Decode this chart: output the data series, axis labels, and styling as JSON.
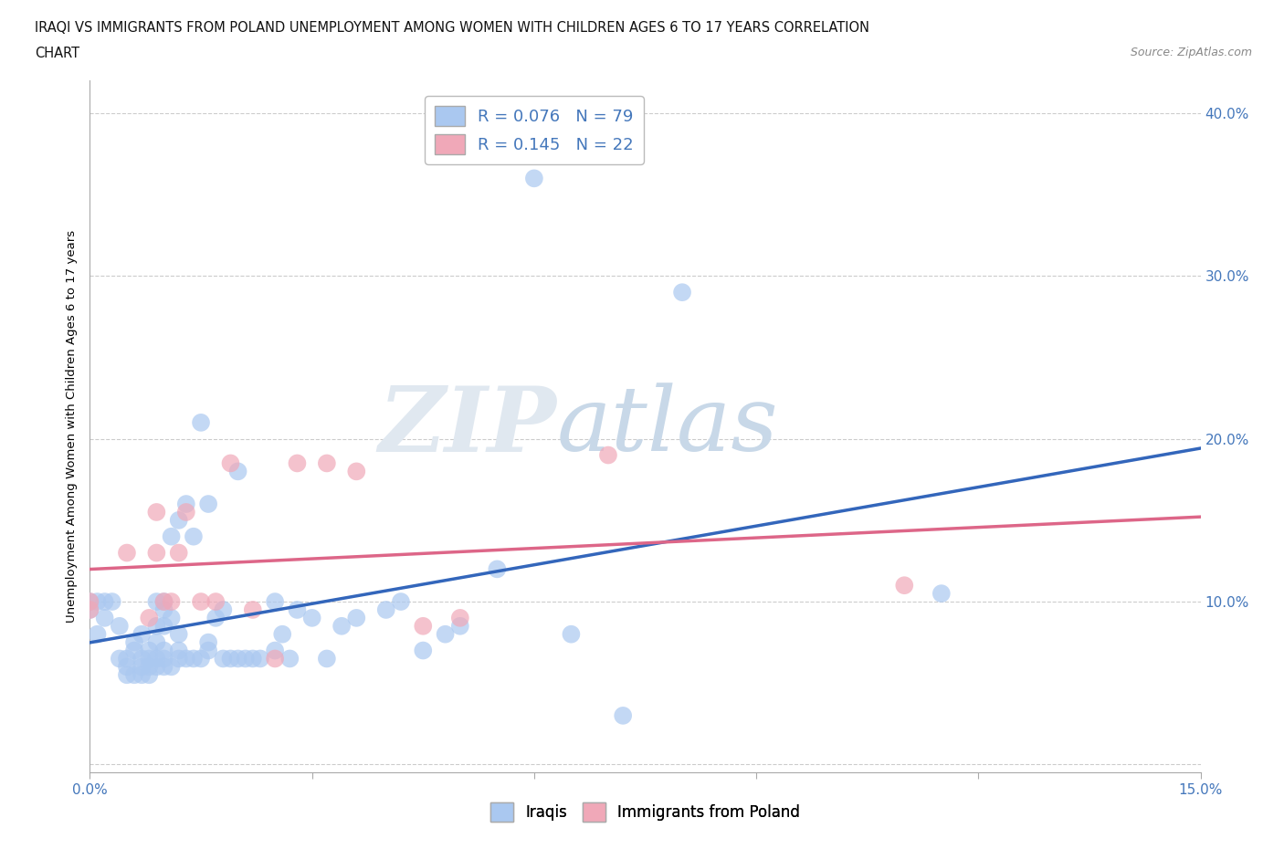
{
  "title_line1": "IRAQI VS IMMIGRANTS FROM POLAND UNEMPLOYMENT AMONG WOMEN WITH CHILDREN AGES 6 TO 17 YEARS CORRELATION",
  "title_line2": "CHART",
  "source": "Source: ZipAtlas.com",
  "ylabel": "Unemployment Among Women with Children Ages 6 to 17 years",
  "xlim": [
    0.0,
    0.15
  ],
  "ylim": [
    -0.005,
    0.42
  ],
  "xticks": [
    0.0,
    0.03,
    0.06,
    0.09,
    0.12,
    0.15
  ],
  "xticklabels": [
    "0.0%",
    "",
    "",
    "",
    "",
    "15.0%"
  ],
  "yticks": [
    0.0,
    0.1,
    0.2,
    0.3,
    0.4
  ],
  "yticklabels": [
    "",
    "10.0%",
    "20.0%",
    "30.0%",
    "40.0%"
  ],
  "iraqis_R": 0.076,
  "iraqis_N": 79,
  "poland_R": 0.145,
  "poland_N": 22,
  "iraqis_color": "#aac8f0",
  "poland_color": "#f0a8b8",
  "iraqis_line_color": "#3366bb",
  "poland_line_color": "#dd6688",
  "watermark_zip": "ZIP",
  "watermark_atlas": "atlas",
  "iraqis_x": [
    0.0,
    0.0,
    0.001,
    0.001,
    0.002,
    0.002,
    0.003,
    0.004,
    0.004,
    0.005,
    0.005,
    0.005,
    0.006,
    0.006,
    0.006,
    0.007,
    0.007,
    0.007,
    0.007,
    0.008,
    0.008,
    0.008,
    0.008,
    0.009,
    0.009,
    0.009,
    0.009,
    0.009,
    0.01,
    0.01,
    0.01,
    0.01,
    0.01,
    0.01,
    0.011,
    0.011,
    0.011,
    0.012,
    0.012,
    0.012,
    0.012,
    0.013,
    0.013,
    0.014,
    0.014,
    0.015,
    0.015,
    0.016,
    0.016,
    0.016,
    0.017,
    0.018,
    0.018,
    0.019,
    0.02,
    0.02,
    0.021,
    0.022,
    0.023,
    0.025,
    0.025,
    0.026,
    0.027,
    0.028,
    0.03,
    0.032,
    0.034,
    0.036,
    0.04,
    0.042,
    0.045,
    0.048,
    0.05,
    0.055,
    0.06,
    0.065,
    0.072,
    0.08,
    0.115
  ],
  "iraqis_y": [
    0.095,
    0.1,
    0.08,
    0.1,
    0.09,
    0.1,
    0.1,
    0.065,
    0.085,
    0.055,
    0.06,
    0.065,
    0.055,
    0.07,
    0.075,
    0.055,
    0.06,
    0.065,
    0.08,
    0.055,
    0.06,
    0.065,
    0.07,
    0.06,
    0.065,
    0.075,
    0.085,
    0.1,
    0.06,
    0.065,
    0.07,
    0.085,
    0.095,
    0.1,
    0.06,
    0.09,
    0.14,
    0.065,
    0.07,
    0.08,
    0.15,
    0.065,
    0.16,
    0.065,
    0.14,
    0.065,
    0.21,
    0.07,
    0.075,
    0.16,
    0.09,
    0.065,
    0.095,
    0.065,
    0.065,
    0.18,
    0.065,
    0.065,
    0.065,
    0.07,
    0.1,
    0.08,
    0.065,
    0.095,
    0.09,
    0.065,
    0.085,
    0.09,
    0.095,
    0.1,
    0.07,
    0.08,
    0.085,
    0.12,
    0.36,
    0.08,
    0.03,
    0.29,
    0.105
  ],
  "poland_x": [
    0.0,
    0.0,
    0.005,
    0.008,
    0.009,
    0.009,
    0.01,
    0.011,
    0.012,
    0.013,
    0.015,
    0.017,
    0.019,
    0.022,
    0.025,
    0.028,
    0.032,
    0.036,
    0.045,
    0.05,
    0.07,
    0.11
  ],
  "poland_y": [
    0.1,
    0.095,
    0.13,
    0.09,
    0.13,
    0.155,
    0.1,
    0.1,
    0.13,
    0.155,
    0.1,
    0.1,
    0.185,
    0.095,
    0.065,
    0.185,
    0.185,
    0.18,
    0.085,
    0.09,
    0.19,
    0.11
  ]
}
